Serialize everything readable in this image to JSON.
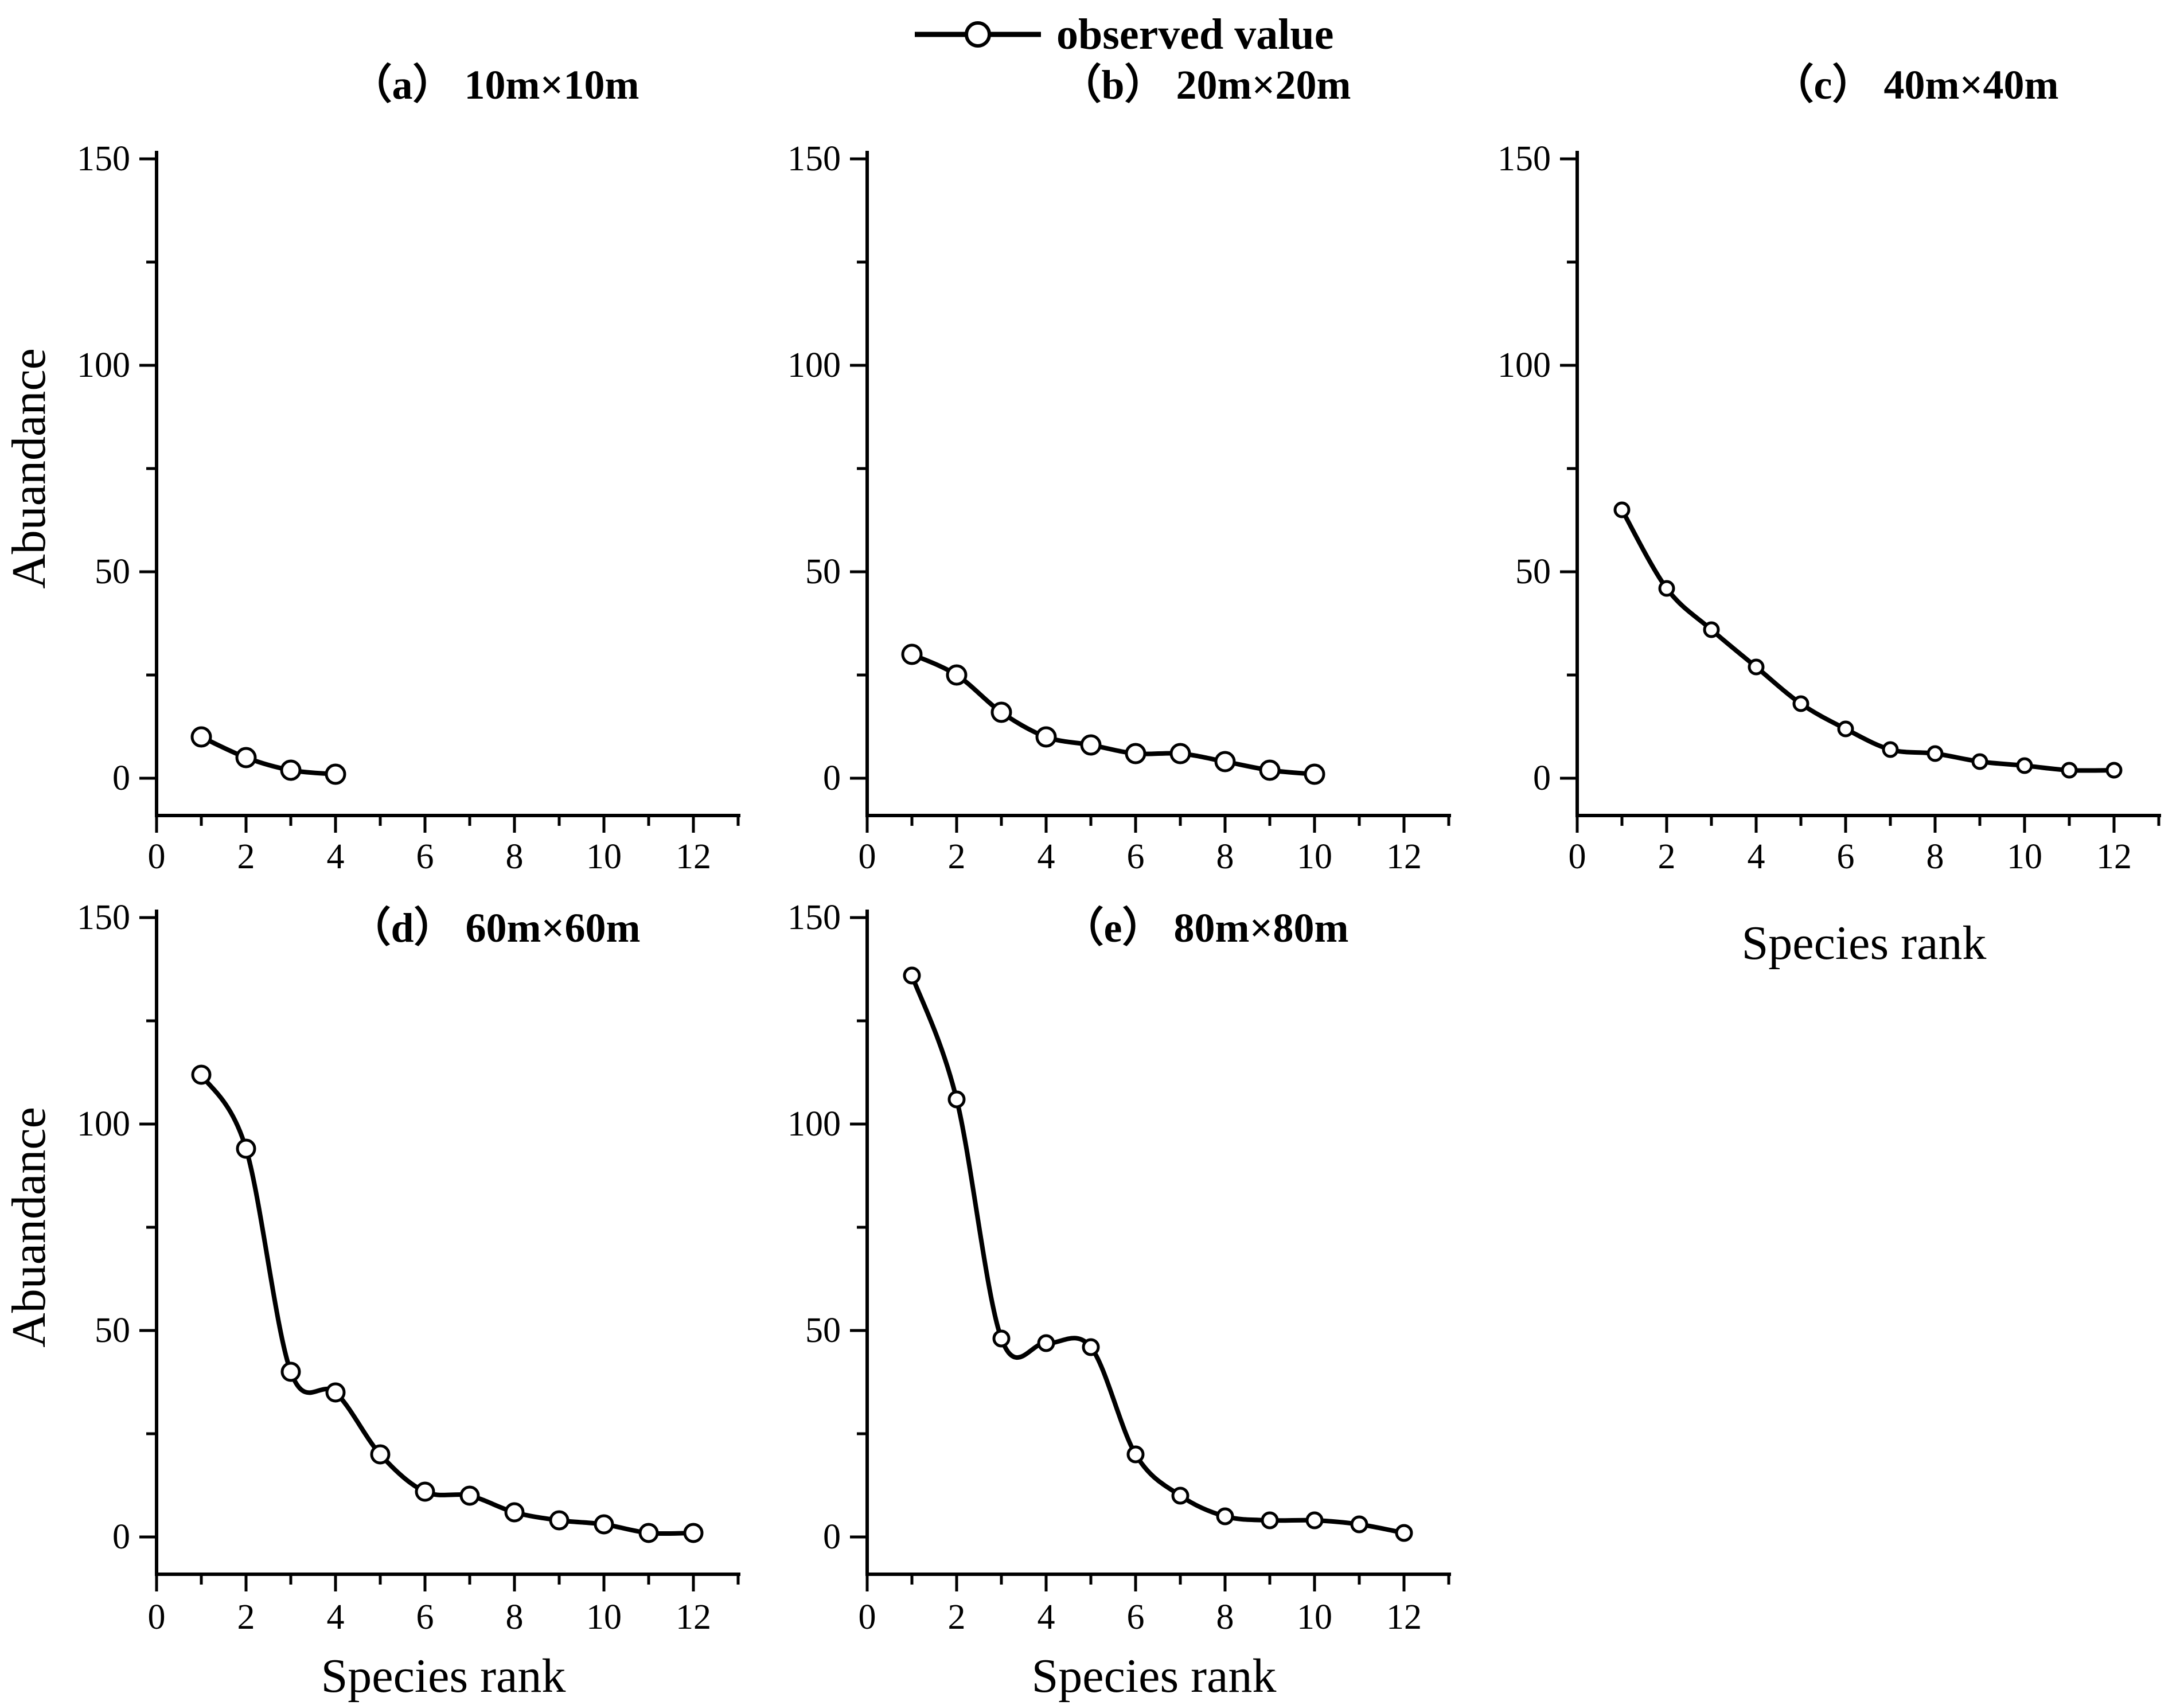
{
  "figure": {
    "background_color": "#ffffff",
    "ink_color": "#000000",
    "marker_fill": "#ffffff"
  },
  "legend": {
    "label": "observed value",
    "marker": "line-with-open-circle"
  },
  "axes": {
    "y_label": "Abuandance",
    "x_label": "Species rank",
    "y_ticks": [
      0,
      50,
      100,
      150
    ],
    "y_minor_ticks": [
      25,
      75,
      125
    ],
    "x_ticks": [
      0,
      2,
      4,
      6,
      8,
      10,
      12
    ],
    "x_minor_ticks": [
      1,
      3,
      5,
      7,
      9,
      11,
      13
    ],
    "xlim": [
      0,
      13
    ],
    "ylim": [
      0,
      150
    ],
    "grid": false,
    "legend_position": "top-center"
  },
  "chart_data": [
    {
      "id": "a",
      "type": "line",
      "title": "（a） 10m×10m",
      "xlabel": "Species rank",
      "ylabel": "Abuandance",
      "xlim": [
        0,
        13
      ],
      "ylim": [
        0,
        150
      ],
      "marker": "open-circle",
      "smoothing": "b-spline",
      "x": [
        1,
        2,
        3,
        4
      ],
      "values": [
        10,
        5,
        2,
        1
      ]
    },
    {
      "id": "b",
      "type": "line",
      "title": "（b） 20m×20m",
      "xlabel": "Species rank",
      "ylabel": "Abuandance",
      "xlim": [
        0,
        13
      ],
      "ylim": [
        0,
        150
      ],
      "marker": "open-circle",
      "smoothing": "b-spline",
      "x": [
        1,
        2,
        3,
        4,
        5,
        6,
        7,
        8,
        9,
        10
      ],
      "values": [
        30,
        25,
        16,
        10,
        8,
        6,
        6,
        4,
        2,
        1
      ]
    },
    {
      "id": "c",
      "type": "line",
      "title": "（c） 40m×40m",
      "xlabel": "Species rank",
      "ylabel": "Abuandance",
      "xlim": [
        0,
        13
      ],
      "ylim": [
        0,
        150
      ],
      "marker": "open-circle",
      "smoothing": "b-spline",
      "x": [
        1,
        2,
        3,
        4,
        5,
        6,
        7,
        8,
        9,
        10,
        11,
        12
      ],
      "values": [
        65,
        46,
        36,
        27,
        18,
        12,
        7,
        6,
        4,
        3,
        2,
        2
      ]
    },
    {
      "id": "d",
      "type": "line",
      "title": "（d） 60m×60m",
      "xlabel": "Species rank",
      "ylabel": "Abuandance",
      "xlim": [
        0,
        13
      ],
      "ylim": [
        0,
        150
      ],
      "marker": "open-circle",
      "smoothing": "b-spline",
      "x": [
        1,
        2,
        3,
        4,
        5,
        6,
        7,
        8,
        9,
        10,
        11,
        12
      ],
      "values": [
        112,
        94,
        40,
        35,
        20,
        11,
        10,
        6,
        4,
        3,
        1,
        1
      ]
    },
    {
      "id": "e",
      "type": "line",
      "title": "（e） 80m×80m",
      "xlabel": "Species rank",
      "ylabel": "Abuandance",
      "xlim": [
        0,
        13
      ],
      "ylim": [
        0,
        150
      ],
      "marker": "open-circle",
      "smoothing": "b-spline",
      "x": [
        1,
        2,
        3,
        4,
        5,
        6,
        7,
        8,
        9,
        10,
        11,
        12
      ],
      "values": [
        136,
        106,
        48,
        47,
        46,
        20,
        10,
        5,
        4,
        4,
        3,
        1
      ]
    }
  ]
}
